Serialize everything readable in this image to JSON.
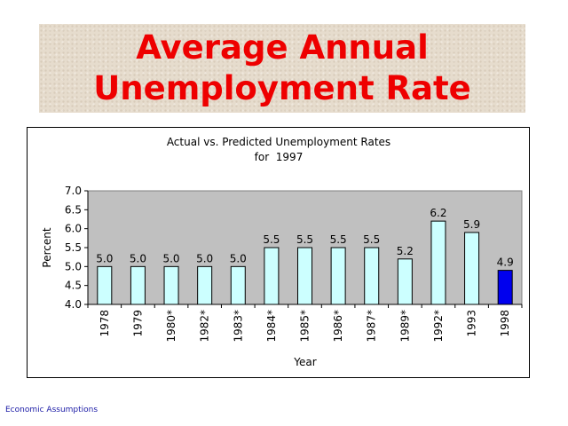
{
  "slide": {
    "title_line1": "Average Annual",
    "title_line2": "Unemployment Rate",
    "footer": "Economic Assumptions"
  },
  "colors": {
    "title": "#ee0000",
    "plot_background": "#c0c0c0",
    "bar_fill": "#ccffff",
    "bar_highlight": "#0000ee",
    "footer": "#1a1aa6"
  },
  "chart_data": {
    "type": "bar",
    "title": "Actual vs. Predicted Unemployment Rates",
    "subtitle": "for  1997",
    "xlabel": "Year",
    "ylabel": "Percent",
    "ylim": [
      4.0,
      7.0
    ],
    "yticks": [
      "4.0",
      "4.5",
      "5.0",
      "5.5",
      "6.0",
      "6.5",
      "7.0"
    ],
    "grid": false,
    "legend": "none",
    "categories": [
      "1978",
      "1979",
      "1980*",
      "1982*",
      "1983*",
      "1984*",
      "1985*",
      "1986*",
      "1987*",
      "1989*",
      "1992*",
      "1993",
      "1998"
    ],
    "values": [
      5.0,
      5.0,
      5.0,
      5.0,
      5.0,
      5.5,
      5.5,
      5.5,
      5.5,
      5.2,
      6.2,
      5.9,
      4.9
    ],
    "data_labels": [
      "5.0",
      "5.0",
      "5.0",
      "5.0",
      "5.0",
      "5.5",
      "5.5",
      "5.5",
      "5.5",
      "5.2",
      "6.2",
      "5.9",
      "4.9"
    ],
    "highlighted_category": "1998"
  }
}
